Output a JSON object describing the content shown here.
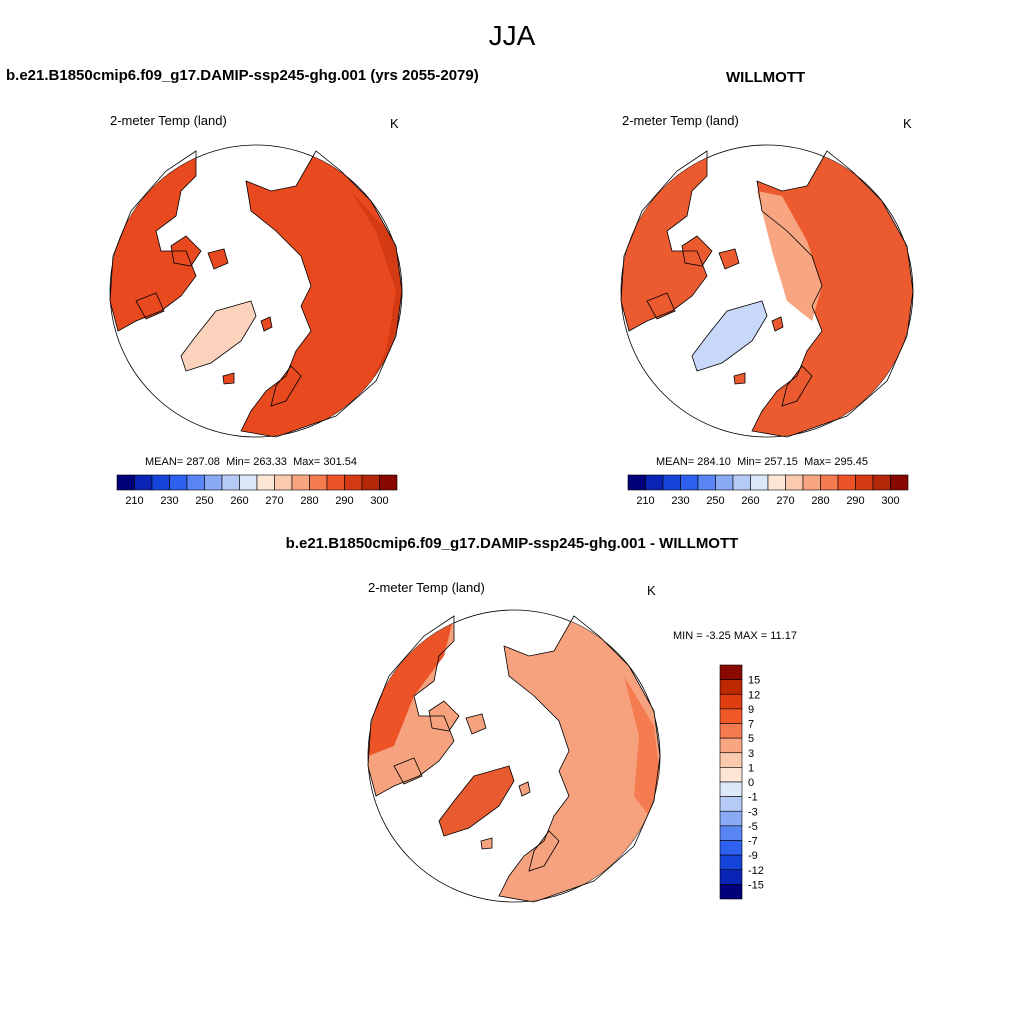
{
  "page": {
    "title": "JJA"
  },
  "panels": [
    {
      "id": "model",
      "title": "b.e21.B1850cmip6.f09_g17.DAMIP-ssp245-ghg.001 (yrs 2055-2079)",
      "variable": "2-meter Temp (land)",
      "units": "K",
      "stats": {
        "mean_label": "MEAN=",
        "mean": "287.08",
        "min_label": "Min=",
        "min": "263.33",
        "max_label": "Max=",
        "max": "301.54"
      }
    },
    {
      "id": "obs",
      "title": "WILLMOTT",
      "variable": "2-meter Temp (land)",
      "units": "K",
      "stats": {
        "mean_label": "MEAN=",
        "mean": "284.10",
        "min_label": "Min=",
        "min": "257.15",
        "max_label": "Max=",
        "max": "295.45"
      }
    }
  ],
  "difference": {
    "title": "b.e21.B1850cmip6.f09_g17.DAMIP-ssp245-ghg.001 - WILLMOTT",
    "variable": "2-meter Temp (land)",
    "units": "K",
    "min_label": "MIN =",
    "min": "-3.25",
    "max_label": "MAX =",
    "max": "11.17"
  },
  "colorbars": {
    "absolute": {
      "ticks": [
        "210",
        "230",
        "250",
        "260",
        "270",
        "280",
        "290",
        "300"
      ],
      "colors": [
        "#00007a",
        "#0a24b6",
        "#1444d8",
        "#2e62ee",
        "#5a86f4",
        "#8aaaf6",
        "#b6caf8",
        "#dde8fa",
        "#fde6d6",
        "#fbc9ad",
        "#f8a582",
        "#f47c50",
        "#ec5428",
        "#d43a14",
        "#b22808",
        "#880800"
      ]
    },
    "difference": {
      "ticks": [
        "15",
        "12",
        "9",
        "7",
        "5",
        "3",
        "1",
        "0",
        "-1",
        "-3",
        "-5",
        "-7",
        "-9",
        "-12",
        "-15"
      ],
      "colors": [
        "#8a0a00",
        "#be2800",
        "#e03e10",
        "#f05a28",
        "#f47c50",
        "#f8a582",
        "#fbc9ad",
        "#fde6d6",
        "#dde8fa",
        "#b6caf8",
        "#8aaaf6",
        "#5a86f4",
        "#2e62ee",
        "#1444d8",
        "#0a24b6",
        "#00007a"
      ]
    }
  },
  "colors": {
    "model_land": "#e8491e",
    "obs_land": "#ec5a30",
    "diff_land": "#f6a27e",
    "coast": "#000000"
  }
}
